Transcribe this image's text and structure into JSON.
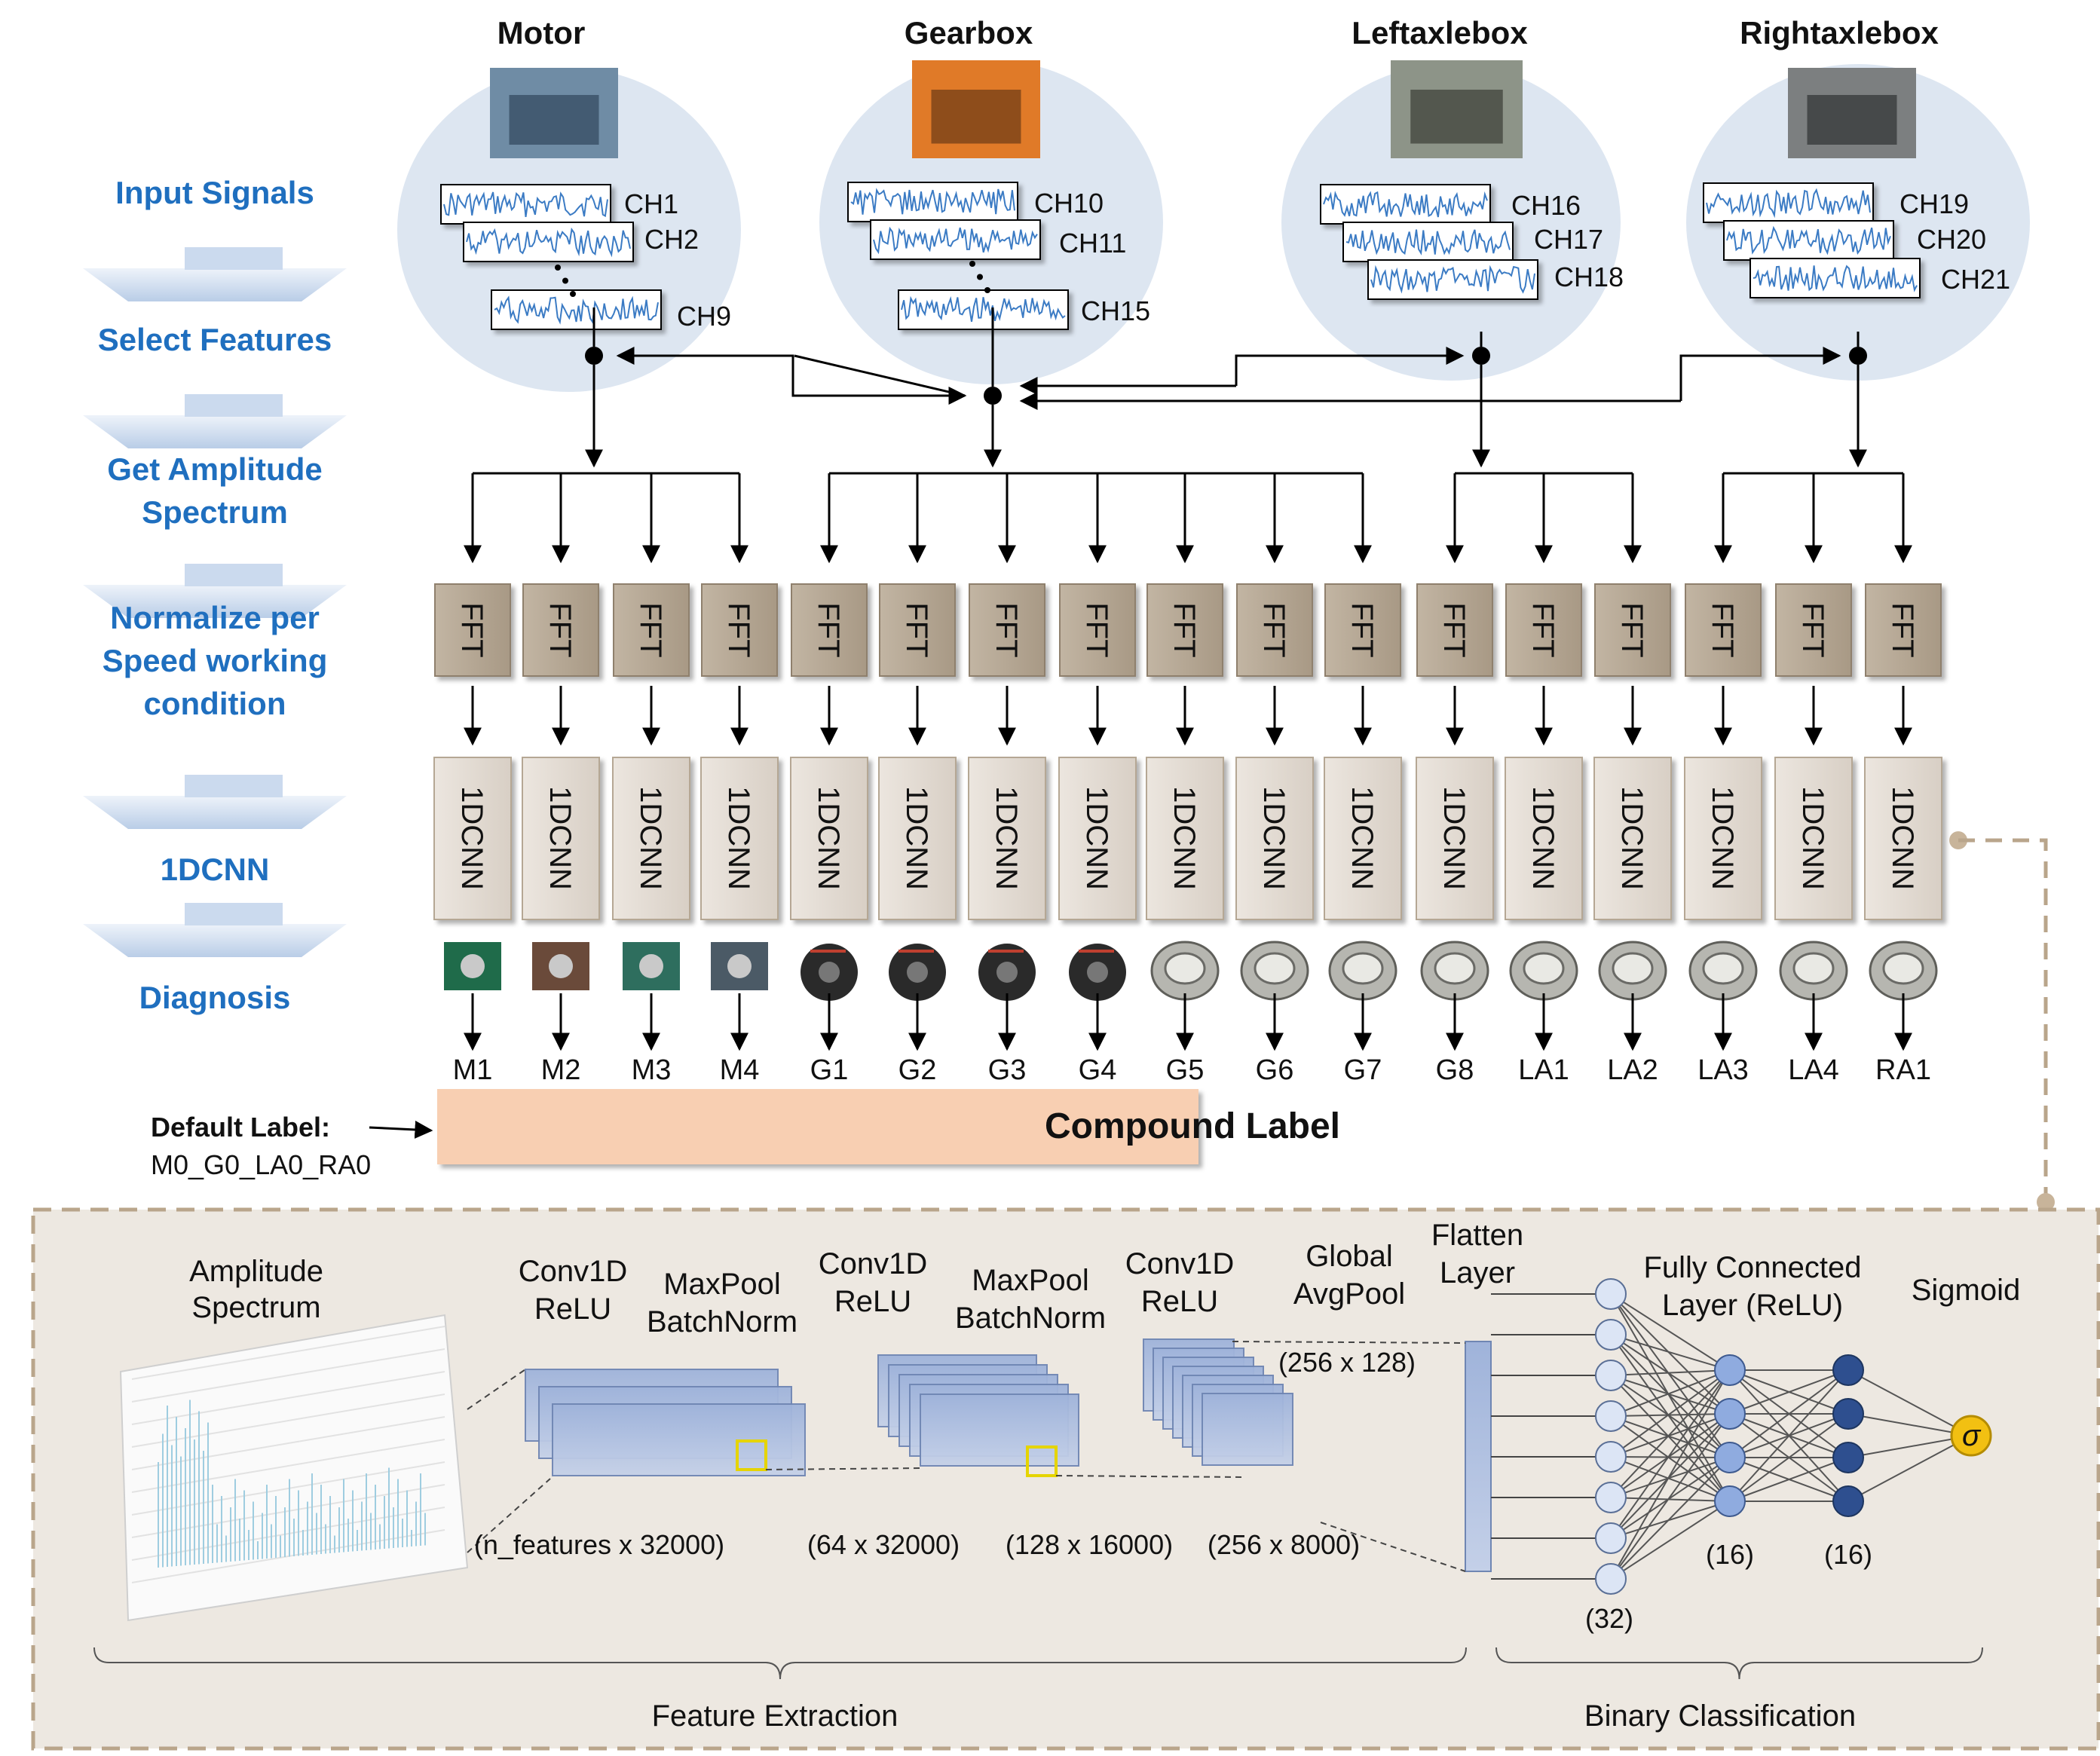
{
  "steps": [
    "Input Signals",
    "Select Features",
    "Get Amplitude|Spectrum",
    "Normalize per|Speed working|condition",
    "1DCNN",
    "Diagnosis"
  ],
  "components": [
    {
      "name": "Motor",
      "channels": [
        "CH1",
        "CH2",
        "CH9"
      ]
    },
    {
      "name": "Gearbox",
      "channels": [
        "CH10",
        "CH11",
        "CH15"
      ]
    },
    {
      "name": "Leftaxlebox",
      "channels": [
        "CH16",
        "CH17",
        "CH18"
      ]
    },
    {
      "name": "Rightaxlebox",
      "channels": [
        "CH19",
        "CH20",
        "CH21"
      ]
    }
  ],
  "fft_label": "FFT",
  "cnn_label": "1DCNN",
  "outputs": [
    "M1",
    "M2",
    "M3",
    "M4",
    "G1",
    "G2",
    "G3",
    "G4",
    "G5",
    "G6",
    "G7",
    "G8",
    "LA1",
    "LA2",
    "LA3",
    "LA4",
    "RA1"
  ],
  "default_label": {
    "title": "Default Label",
    "value": "M0_G0_LA0_RA0"
  },
  "compound_label": "Compound Label",
  "detail": {
    "amplitude_spectrum": "Amplitude|Spectrum",
    "conv1": "Conv1D|ReLU",
    "pool1": "MaxPool|BatchNorm",
    "conv2": "Conv1D|ReLU",
    "pool2": "MaxPool|BatchNorm",
    "conv3": "Conv1D|ReLU",
    "gap": "Global|AvgPool",
    "flatten": "Flatten|Layer",
    "fc": "Fully Connected|Layer (ReLU)",
    "sigmoid": "Sigmoid",
    "sigma": "σ",
    "dims": [
      "(n_features x 32000)",
      "(64 x 32000)",
      "(128 x 16000)",
      "(256 x 8000)",
      "(256 x 128)"
    ],
    "fc_counts": [
      "(32)",
      "(16)",
      "(16)"
    ],
    "sections": [
      "Feature Extraction",
      "Binary Classification"
    ]
  },
  "colors": {
    "step_text": "#1f6fbf",
    "ellipse": "#dde6f1",
    "fft_box": "#b5a794",
    "cnn_box": "#e3dcd5",
    "compound_label_bg": "#f8cfb2",
    "detail_bg": "#ede8e1",
    "layer_fill": "#7f98c9",
    "node_light": "#dce5f5",
    "node_mid": "#8fabdf",
    "node_dark": "#2e4f8f",
    "sigmoid_node": "#f2c012"
  }
}
